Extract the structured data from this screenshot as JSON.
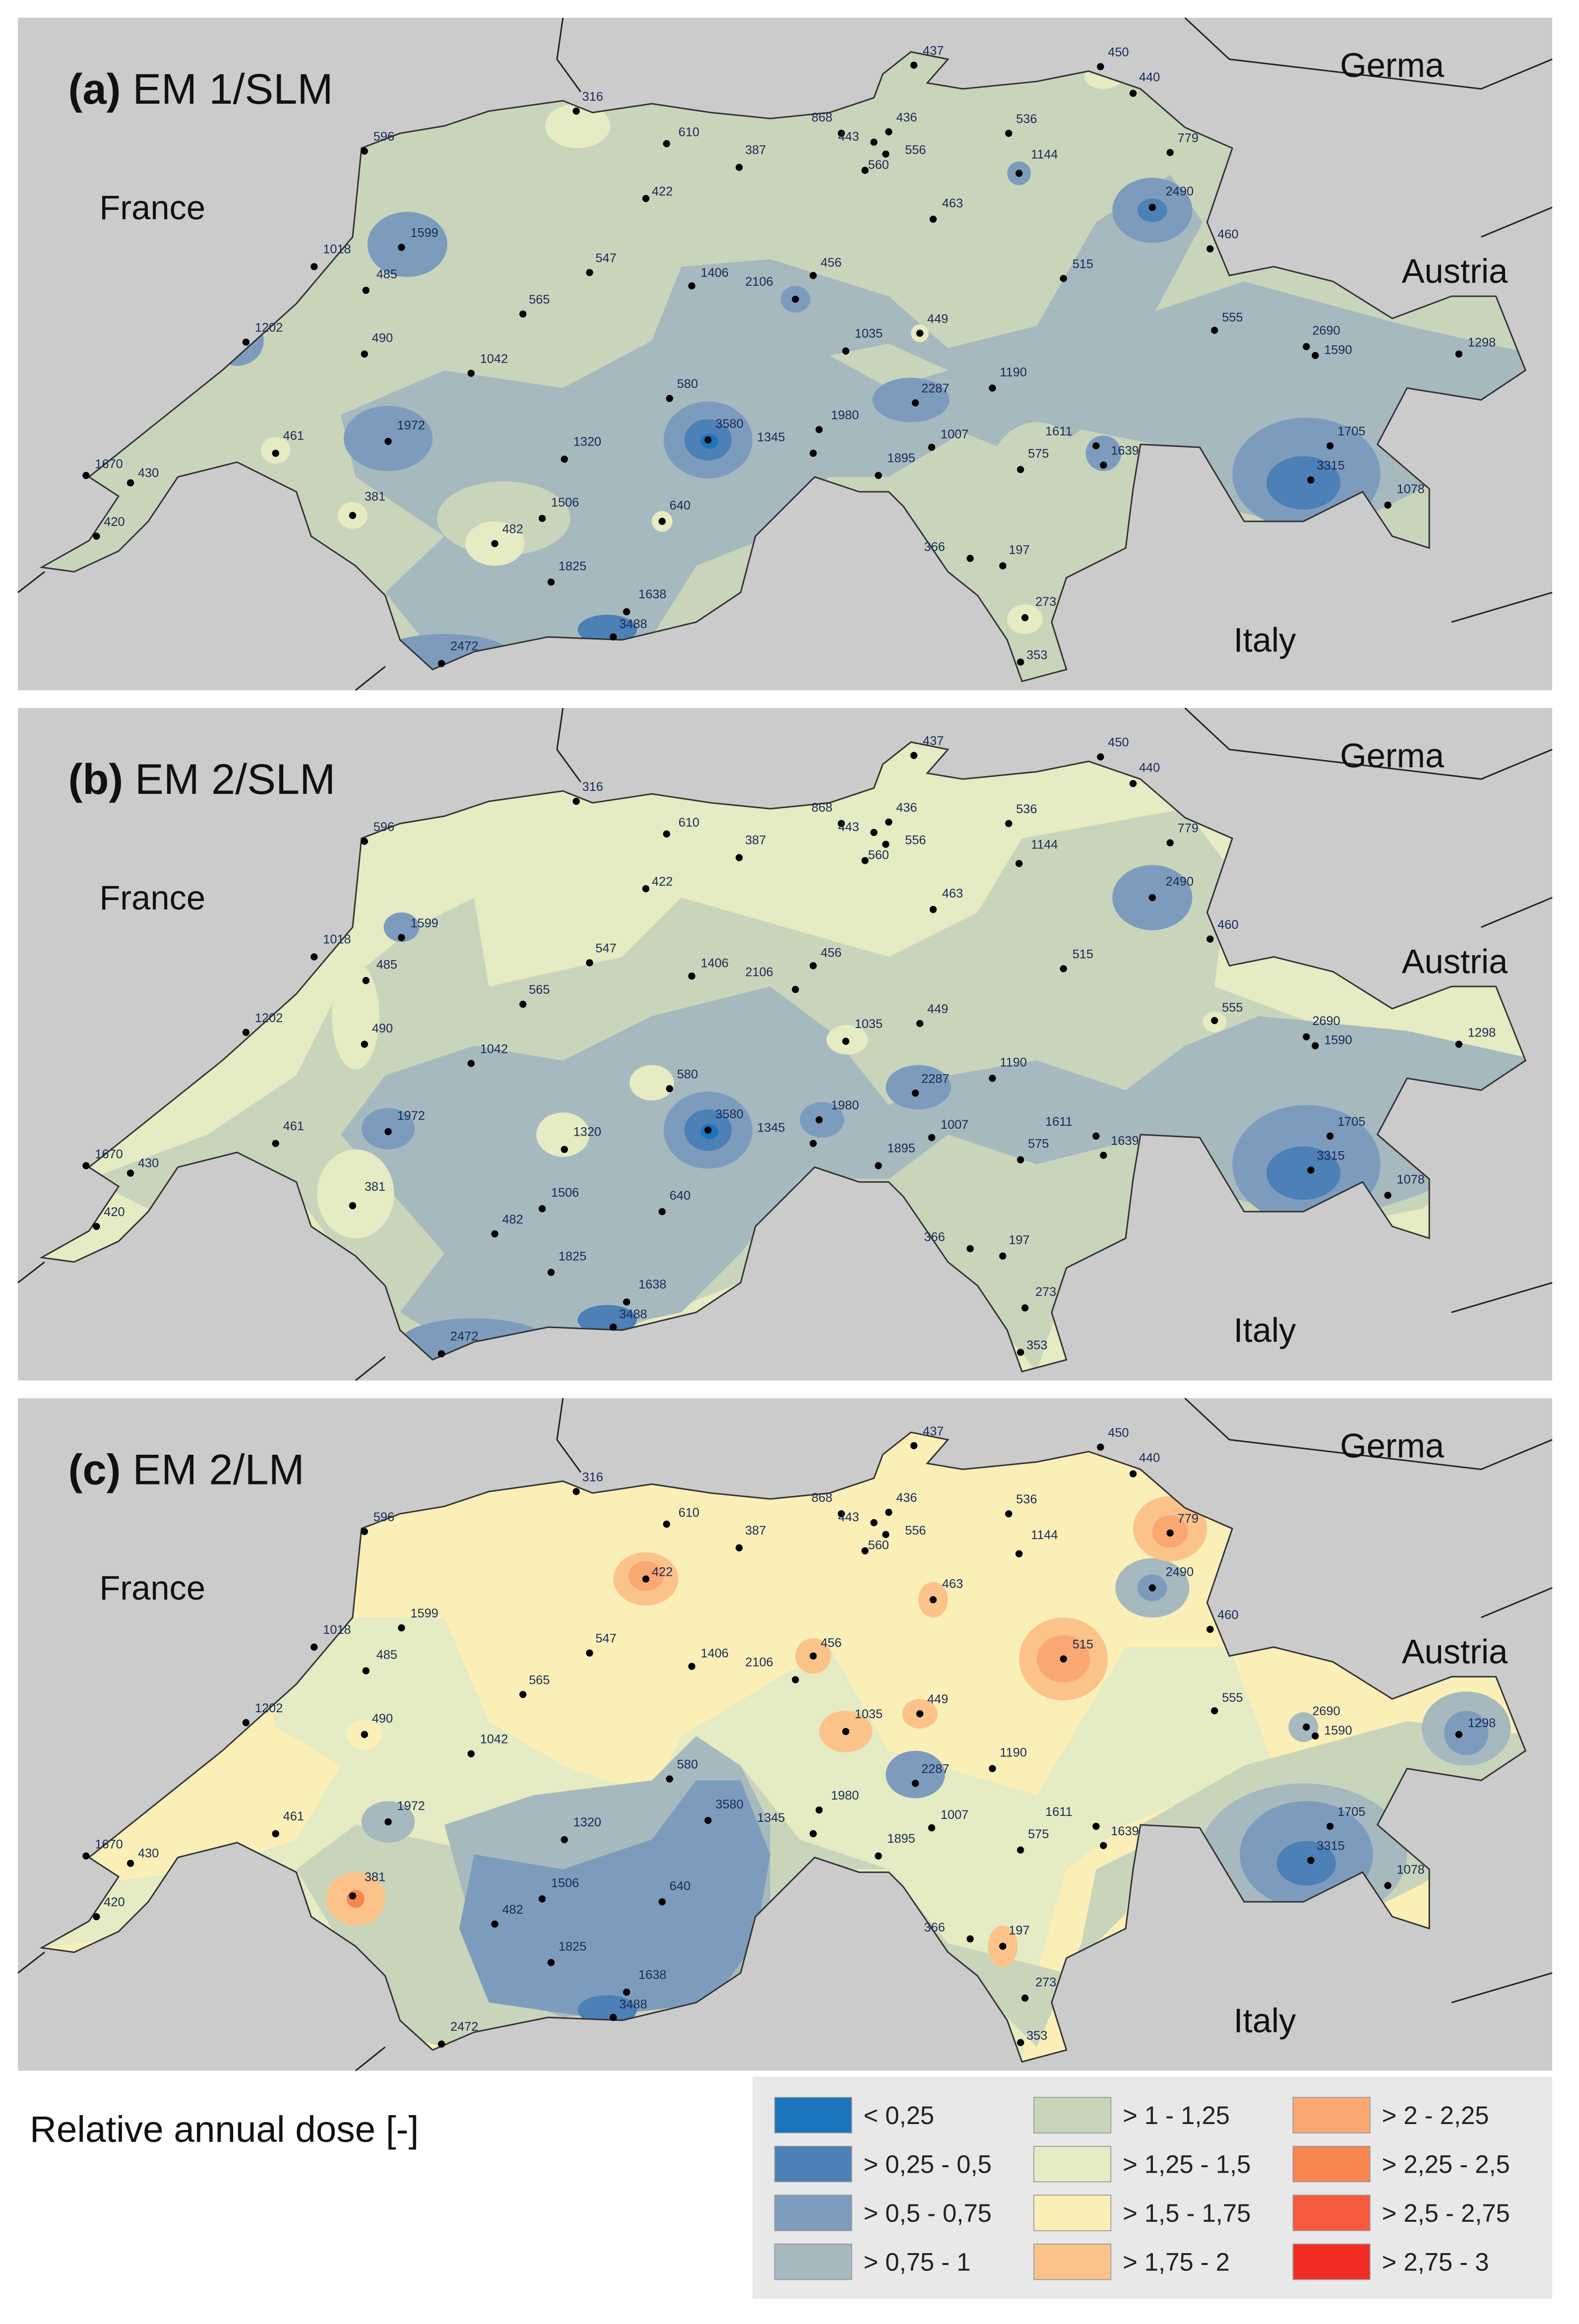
{
  "panels": [
    {
      "label": "(a)",
      "title": "EM 1/SLM",
      "countries": [
        "France",
        "Germa",
        "Austria",
        "Italy"
      ]
    },
    {
      "label": "(b)",
      "title": "EM 2/SLM",
      "countries": [
        "France",
        "Germa",
        "Austria",
        "Italy"
      ]
    },
    {
      "label": "(c)",
      "title": "EM 2/LM",
      "countries": [
        "France",
        "Germa",
        "Austria",
        "Italy"
      ]
    }
  ],
  "stations": [
    437,
    450,
    440,
    316,
    596,
    610,
    868,
    436,
    443,
    556,
    560,
    387,
    536,
    1144,
    779,
    422,
    463,
    2490,
    1599,
    1018,
    547,
    460,
    485,
    1406,
    456,
    2106,
    515,
    565,
    1202,
    490,
    1035,
    449,
    555,
    2690,
    1590,
    1298,
    1042,
    580,
    2287,
    1190,
    461,
    1972,
    3580,
    1980,
    1345,
    1320,
    1007,
    1611,
    1705,
    575,
    1639,
    1895,
    3315,
    1670,
    430,
    381,
    1506,
    640,
    1078,
    420,
    482,
    366,
    197,
    1825,
    1638,
    3488,
    273,
    353,
    2472
  ],
  "legend": {
    "title": "Relative annual dose [-]",
    "items": [
      {
        "label": "< 0,25",
        "color": "#1b74bc"
      },
      {
        "label": "> 0,25 - 0,5",
        "color": "#4c80b6"
      },
      {
        "label": "> 0,5 - 0,75",
        "color": "#7d9cbd"
      },
      {
        "label": "> 0,75 - 1",
        "color": "#a5b9bf"
      },
      {
        "label": "> 1 - 1,25",
        "color": "#c9d5bb"
      },
      {
        "label": "> 1,25 - 1,5",
        "color": "#e5ebc2"
      },
      {
        "label": "> 1,5 - 1,75",
        "color": "#fbefb8"
      },
      {
        "label": "> 1,75 - 2",
        "color": "#fbc38a"
      },
      {
        "label": "> 2 - 2,25",
        "color": "#f9a872"
      },
      {
        "label": "> 2,25 - 2,5",
        "color": "#f8854f"
      },
      {
        "label": "> 2,5 - 2,75",
        "color": "#f65a3e"
      },
      {
        "label": "> 2,75 - 3",
        "color": "#f02c25"
      }
    ]
  }
}
